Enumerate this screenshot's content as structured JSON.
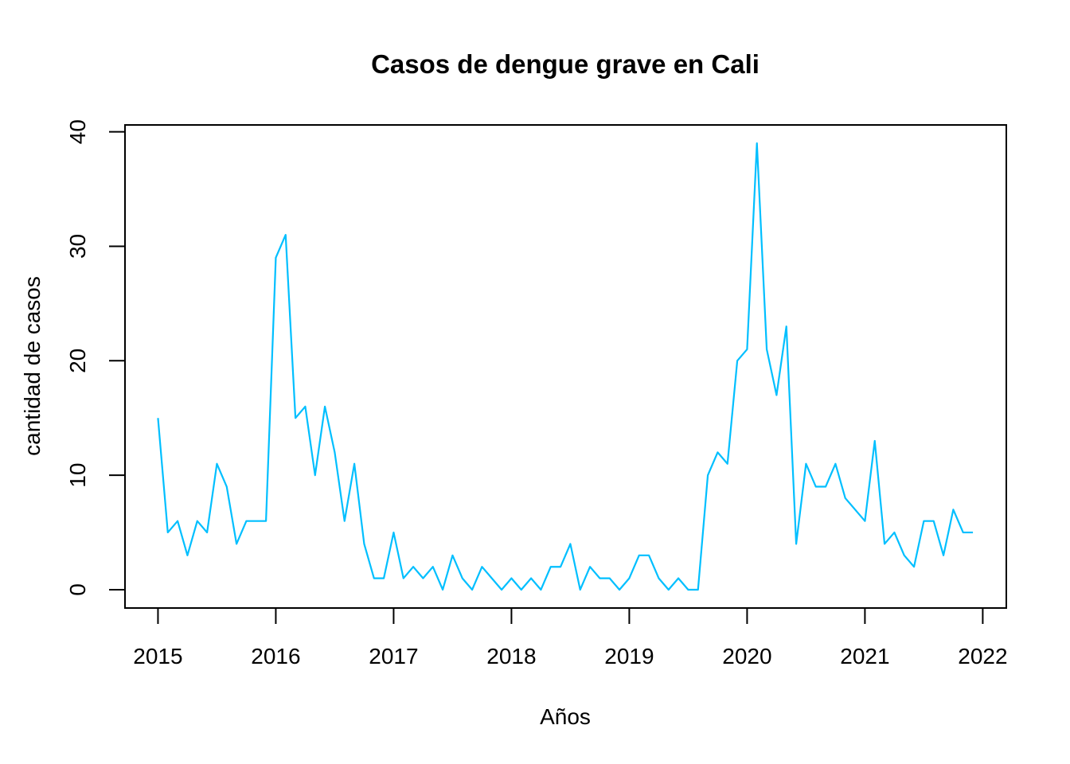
{
  "chart_data": {
    "type": "line",
    "title": "Casos de dengue grave en Cali",
    "xlabel": "Años",
    "ylabel": "cantidad de casos",
    "xlim": [
      2014.72,
      2022.2
    ],
    "ylim": [
      -1.6,
      40.6
    ],
    "x_ticks": [
      "2015",
      "2016",
      "2017",
      "2018",
      "2019",
      "2020",
      "2021",
      "2022"
    ],
    "y_ticks": [
      "0",
      "10",
      "20",
      "30",
      "40"
    ],
    "x_start": "2015-01",
    "x_step": "monthly",
    "series": [
      {
        "color": "#00BFFF",
        "values": [
          15,
          5,
          6,
          3,
          6,
          5,
          11,
          9,
          4,
          6,
          6,
          6,
          29,
          31,
          15,
          16,
          10,
          16,
          12,
          6,
          11,
          4,
          1,
          1,
          5,
          1,
          2,
          1,
          2,
          0,
          3,
          1,
          0,
          2,
          1,
          0,
          1,
          0,
          1,
          0,
          2,
          2,
          4,
          0,
          2,
          1,
          1,
          0,
          1,
          3,
          3,
          1,
          0,
          1,
          0,
          0,
          10,
          12,
          11,
          20,
          21,
          39,
          21,
          17,
          23,
          4,
          11,
          9,
          9,
          11,
          8,
          7,
          6,
          13,
          4,
          5,
          3,
          2,
          6,
          6,
          3,
          7,
          5,
          5
        ]
      }
    ],
    "grid": false,
    "legend": "none"
  }
}
